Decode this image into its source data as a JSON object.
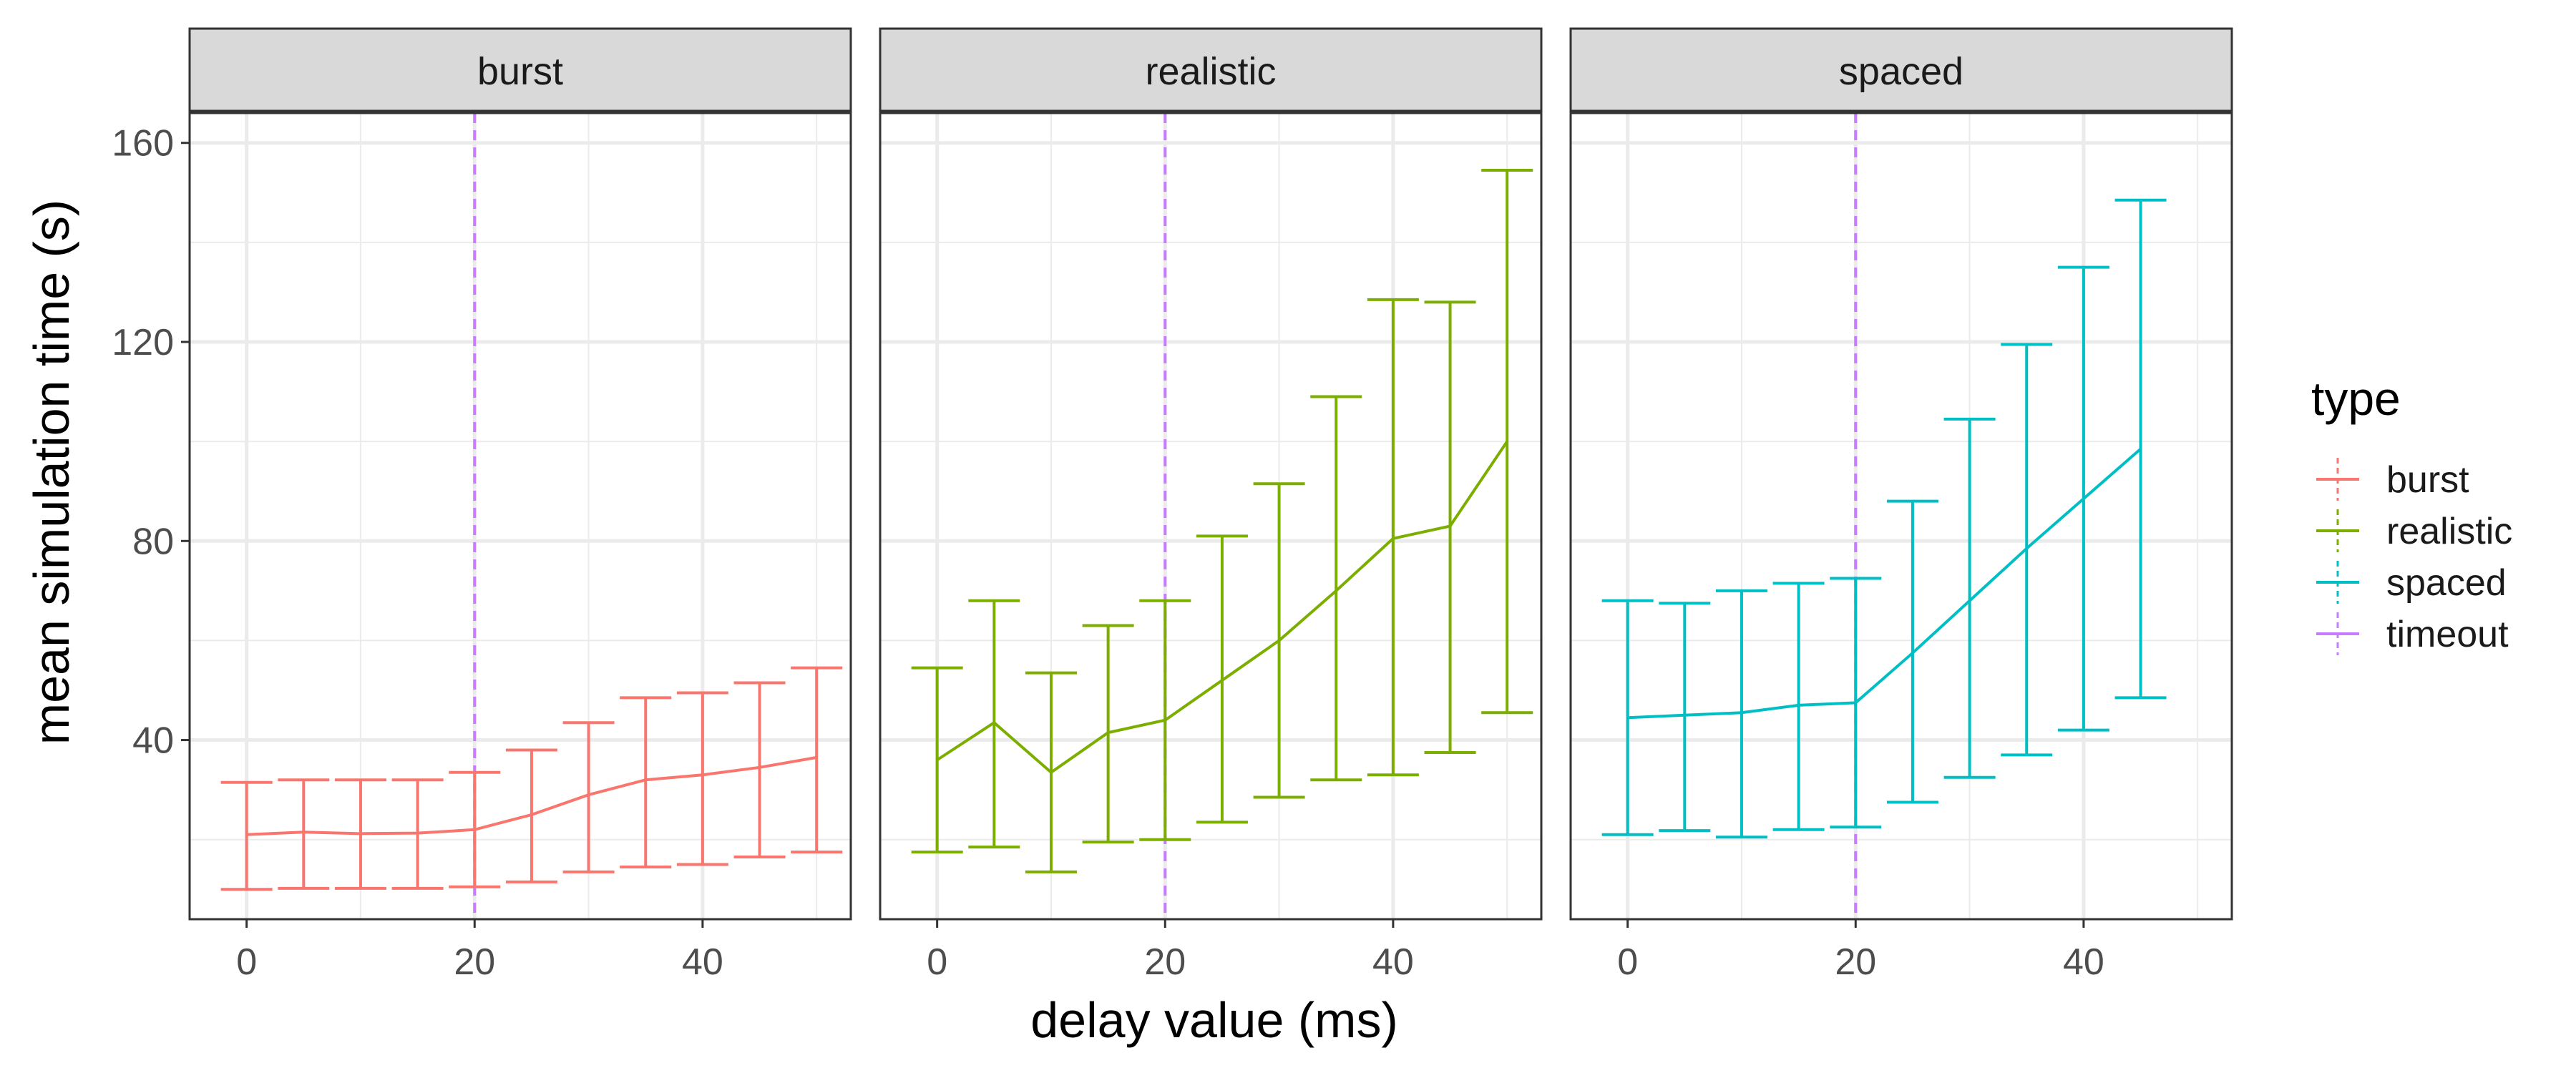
{
  "chart_data": {
    "type": "line",
    "xlabel": "delay value (ms)",
    "ylabel": "mean simulation time (s)",
    "xlim": [
      -5,
      53
    ],
    "ylim": [
      4,
      166
    ],
    "x_ticks": [
      0,
      20,
      40
    ],
    "y_ticks": [
      40,
      80,
      120,
      160
    ],
    "grid": true,
    "facet_by": "type",
    "legend": {
      "title": "type",
      "position": "right",
      "entries": [
        "burst",
        "realistic",
        "spaced",
        "timeout"
      ]
    },
    "colors": {
      "burst": "#F8766D",
      "realistic": "#7CAE00",
      "spaced": "#00BFC4",
      "timeout": "#C77CFF"
    },
    "timeout_x": 20,
    "panels": [
      {
        "title": "burst",
        "series": "burst",
        "x": [
          0,
          5,
          10,
          15,
          20,
          25,
          30,
          35,
          40,
          45,
          50
        ],
        "mean": [
          21,
          21.5,
          21.2,
          21.3,
          22,
          25,
          29,
          32,
          33,
          34.5,
          36.5
        ],
        "ymin": [
          10,
          10.2,
          10.2,
          10.2,
          10.5,
          11.5,
          13.5,
          14.5,
          15,
          16.5,
          17.5
        ],
        "ymax": [
          31.5,
          32,
          32,
          32,
          33.5,
          38,
          43.5,
          48.5,
          49.5,
          51.5,
          54.5
        ]
      },
      {
        "title": "realistic",
        "series": "realistic",
        "x": [
          0,
          5,
          10,
          15,
          20,
          25,
          30,
          35,
          40,
          45,
          50
        ],
        "mean": [
          36,
          43.5,
          33.5,
          41.5,
          44,
          52,
          60,
          70,
          80.5,
          83,
          100
        ],
        "ymin": [
          17.5,
          18.5,
          13.5,
          19.5,
          20,
          23.5,
          28.5,
          32,
          33,
          37.5,
          45.5
        ],
        "ymax": [
          54.5,
          68,
          53.5,
          63,
          68,
          81,
          91.5,
          109,
          128.5,
          128,
          154.5
        ]
      },
      {
        "title": "spaced",
        "series": "spaced",
        "x": [
          0,
          5,
          10,
          15,
          20,
          25,
          30,
          35,
          40,
          45
        ],
        "mean": [
          44.5,
          45,
          45.5,
          47,
          47.5,
          57.5,
          68,
          78.5,
          88.5,
          98.5
        ],
        "ymin": [
          21,
          21.8,
          20.5,
          22,
          22.5,
          27.5,
          32.5,
          37,
          42,
          48.5
        ],
        "ymax": [
          68,
          67.5,
          70,
          71.5,
          72.5,
          88,
          104.5,
          119.5,
          135,
          148.5
        ]
      }
    ]
  }
}
